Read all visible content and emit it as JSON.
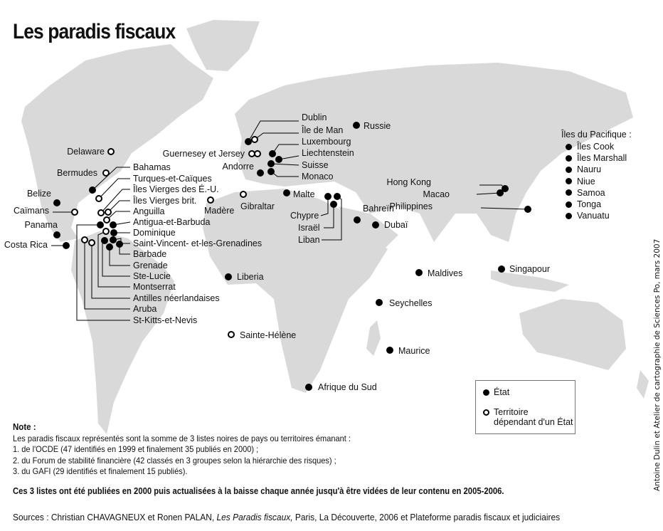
{
  "title": "Les paradis fiscaux",
  "colors": {
    "land": "#d9d9d9",
    "marker": "#000000",
    "sea": "#ffffff"
  },
  "places": [
    {
      "name": "Dublin",
      "type": "etat"
    },
    {
      "name": "Île de Man",
      "type": "territoire"
    },
    {
      "name": "Luxembourg",
      "type": "etat"
    },
    {
      "name": "Guernesey et Jersey",
      "type": "territoire"
    },
    {
      "name": "Liechtenstein",
      "type": "etat"
    },
    {
      "name": "Andorre",
      "type": "etat"
    },
    {
      "name": "Suisse",
      "type": "etat"
    },
    {
      "name": "Monaco",
      "type": "etat"
    },
    {
      "name": "Malte",
      "type": "etat"
    },
    {
      "name": "Gibraltar",
      "type": "territoire"
    },
    {
      "name": "Madère",
      "type": "territoire"
    },
    {
      "name": "Chypre",
      "type": "etat"
    },
    {
      "name": "Israël",
      "type": "etat"
    },
    {
      "name": "Liban",
      "type": "etat"
    },
    {
      "name": "Bahreïn",
      "type": "etat"
    },
    {
      "name": "Dubaï",
      "type": "etat"
    },
    {
      "name": "Russie",
      "type": "etat"
    },
    {
      "name": "Hong Kong",
      "type": "etat"
    },
    {
      "name": "Macao",
      "type": "etat"
    },
    {
      "name": "Philippines",
      "type": "etat"
    },
    {
      "name": "Maldives",
      "type": "etat"
    },
    {
      "name": "Singapour",
      "type": "etat"
    },
    {
      "name": "Seychelles",
      "type": "etat"
    },
    {
      "name": "Maurice",
      "type": "etat"
    },
    {
      "name": "Afrique du Sud",
      "type": "etat"
    },
    {
      "name": "Liberia",
      "type": "etat"
    },
    {
      "name": "Sainte-Hélène",
      "type": "territoire"
    },
    {
      "name": "Delaware",
      "type": "territoire"
    },
    {
      "name": "Bermudes",
      "type": "territoire"
    },
    {
      "name": "Bahamas",
      "type": "etat"
    },
    {
      "name": "Turques-et-Caïques",
      "type": "territoire"
    },
    {
      "name": "Îles Vierges des É.-U.",
      "type": "territoire"
    },
    {
      "name": "Îles Vierges brit.",
      "type": "territoire"
    },
    {
      "name": "Anguilla",
      "type": "territoire"
    },
    {
      "name": "Antigua-et-Barbuda",
      "type": "etat"
    },
    {
      "name": "Dominique",
      "type": "etat"
    },
    {
      "name": "Saint-Vincent- et-les-Grenadines",
      "type": "etat"
    },
    {
      "name": "Barbade",
      "type": "etat"
    },
    {
      "name": "Grenade",
      "type": "etat"
    },
    {
      "name": "Ste-Lucie",
      "type": "etat"
    },
    {
      "name": "Montserrat",
      "type": "territoire"
    },
    {
      "name": "Antilles néerlandaises",
      "type": "territoire"
    },
    {
      "name": "Aruba",
      "type": "territoire"
    },
    {
      "name": "St-Kitts-et-Nevis",
      "type": "etat"
    },
    {
      "name": "Belize",
      "type": "etat"
    },
    {
      "name": "Caïmans",
      "type": "territoire"
    },
    {
      "name": "Panama",
      "type": "etat"
    },
    {
      "name": "Costa Rica",
      "type": "etat"
    }
  ],
  "pacific": {
    "title": "Îles du Pacifique :",
    "items": [
      "Îles Cook",
      "Îles Marshall",
      "Nauru",
      "Niue",
      "Samoa",
      "Tonga",
      "Vanuatu"
    ]
  },
  "legend": {
    "etat": "État",
    "territoire_line1": "Territoire",
    "territoire_line2": "dépendant d'un État"
  },
  "note": {
    "heading": "Note :",
    "lines": [
      "Les paradis fiscaux représentés sont la somme de 3 listes noires de pays ou territoires émanant :",
      "1. de l'OCDE (47 identifiés en 1999 et finalement 35 publiés en 2000) ;",
      "2. du Forum de stabilité financière (42 classés en 3 groupes selon la hiérarchie des risques) ;",
      "3. du GAFI (29 identifiés et finalement 15 publiés)."
    ],
    "emphasis": "Ces 3 listes ont été publiées en 2000 puis actualisées à la baisse chaque année jusqu'à être vidées de leur contenu en 2005-2006."
  },
  "sources": {
    "prefix": "Sources : Christian CHAVAGNEUX et Ronen PALAN, ",
    "book": "Les Paradis fiscaux,",
    "suffix": " Paris, La Découverte, 2006 et Plateforme paradis fiscaux et judiciaires"
  },
  "credit": "Antoine Dulin et Atelier de cartographie de Sciences Po, mars 2007"
}
